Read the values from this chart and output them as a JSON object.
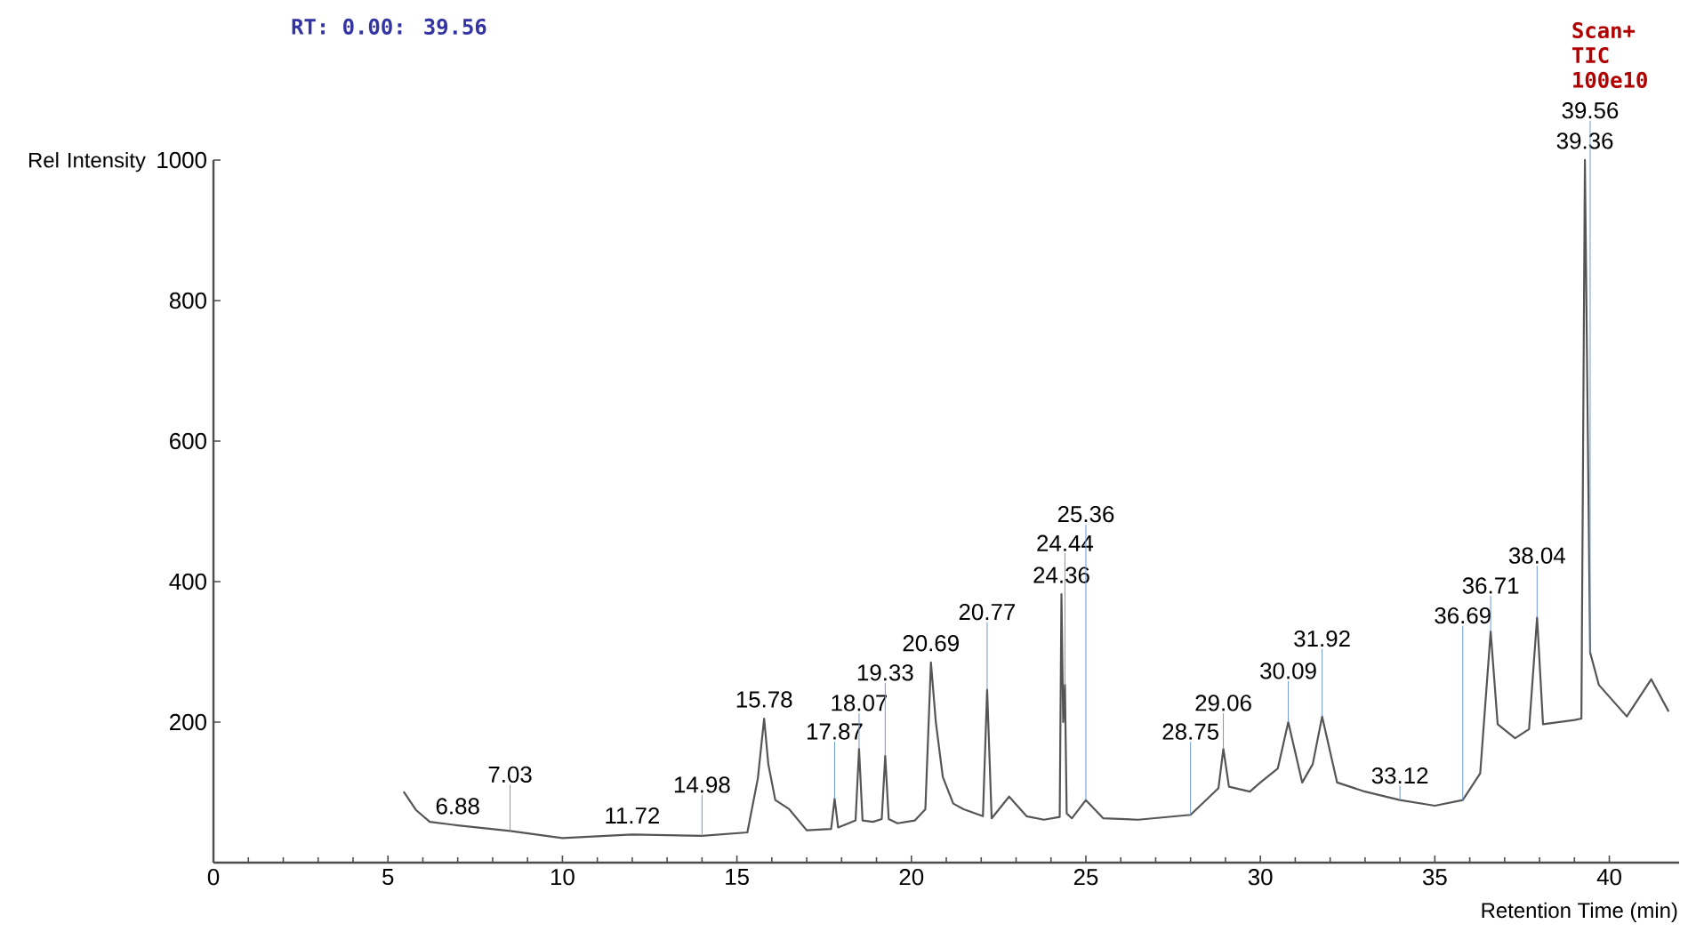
{
  "chart_data": {
    "type": "line",
    "title": "RT: 0.00: 39.56",
    "xlabel": "Retention Time (min)",
    "ylabel": "Rel Intensity",
    "xlim": [
      0,
      42
    ],
    "ylim": [
      0,
      1000
    ],
    "xticks": [
      0,
      5,
      10,
      15,
      20,
      25,
      30,
      35,
      40
    ],
    "yticks": [
      200,
      400,
      600,
      800,
      1000
    ],
    "grid": false,
    "marker": "none",
    "line_style": "solid",
    "series": [
      {
        "color": "#555555",
        "x": [
          5.45,
          5.8,
          6.2,
          7,
          8.5,
          10,
          12,
          14,
          15.3,
          15.6,
          15.78,
          15.9,
          16.1,
          16.5,
          17,
          17.7,
          17.8,
          17.9,
          18.2,
          18.4,
          18.5,
          18.6,
          18.9,
          19.15,
          19.25,
          19.35,
          19.6,
          20.1,
          20.4,
          20.56,
          20.7,
          20.9,
          21.2,
          21.5,
          22.05,
          22.17,
          22.3,
          22.8,
          23.3,
          23.8,
          24.25,
          24.3,
          24.35,
          24.4,
          24.45,
          24.6,
          25,
          25.5,
          26.5,
          28,
          28.8,
          28.94,
          29.1,
          29.7,
          30,
          30.5,
          30.8,
          31.2,
          31.5,
          31.77,
          32.2,
          33,
          34,
          35,
          35.8,
          36.3,
          36.6,
          36.8,
          37.3,
          37.7,
          37.93,
          38.1,
          39,
          39.2,
          39.3,
          39.45,
          39.7,
          40.5,
          41.2,
          41.7
        ],
        "values": [
          101,
          75,
          58,
          53,
          45,
          35,
          40,
          38,
          43,
          120,
          205,
          140,
          89,
          76,
          46,
          48,
          91,
          50,
          56,
          60,
          162,
          60,
          58,
          62,
          152,
          62,
          56,
          60,
          76,
          285,
          200,
          122,
          84,
          76,
          66,
          246,
          63,
          94,
          66,
          61,
          65,
          382,
          200,
          253,
          70,
          63,
          89,
          63,
          61,
          68,
          106,
          162,
          108,
          101,
          114,
          134,
          200,
          114,
          140,
          208,
          114,
          101,
          89,
          81,
          89,
          127,
          329,
          197,
          177,
          190,
          349,
          197,
          203,
          205,
          1000,
          299,
          253,
          208,
          261,
          215
        ]
      }
    ],
    "annotations": [
      "Scan+ TIC 100e10",
      {
        "text": "6.88",
        "x": 7,
        "y": 53
      },
      {
        "text": "7.03",
        "x": 8.5,
        "y": 45
      },
      {
        "text": "11.72",
        "x": 12,
        "y": 40
      },
      {
        "text": "14.98",
        "x": 14,
        "y": 38
      },
      {
        "text": "15.78",
        "x": 15.78,
        "y": 205
      },
      {
        "text": "17.87",
        "x": 17.8,
        "y": 91
      },
      {
        "text": "18.07",
        "x": 18.5,
        "y": 162
      },
      {
        "text": "19.33",
        "x": 19.25,
        "y": 152
      },
      {
        "text": "20.69",
        "x": 20.56,
        "y": 285
      },
      {
        "text": "20.77",
        "x": 22.17,
        "y": 246
      },
      {
        "text": "24.36",
        "x": 24.3,
        "y": 382
      },
      {
        "text": "24.44",
        "x": 24.4,
        "y": 253
      },
      {
        "text": "25.36",
        "x": 25,
        "y": 89
      },
      {
        "text": "28.75",
        "x": 28,
        "y": 68
      },
      {
        "text": "29.06",
        "x": 28.94,
        "y": 162
      },
      {
        "text": "30.09",
        "x": 30.8,
        "y": 200
      },
      {
        "text": "31.92",
        "x": 31.77,
        "y": 208
      },
      {
        "text": "33.12",
        "x": 34,
        "y": 89
      },
      {
        "text": "36.69",
        "x": 35.8,
        "y": 89
      },
      {
        "text": "36.71",
        "x": 36.6,
        "y": 329
      },
      {
        "text": "38.04",
        "x": 37.93,
        "y": 349
      },
      {
        "text": "39.56",
        "x": 39.45,
        "y": 299
      },
      {
        "text": "39.36",
        "x": 39.3,
        "y": 1000
      }
    ]
  }
}
